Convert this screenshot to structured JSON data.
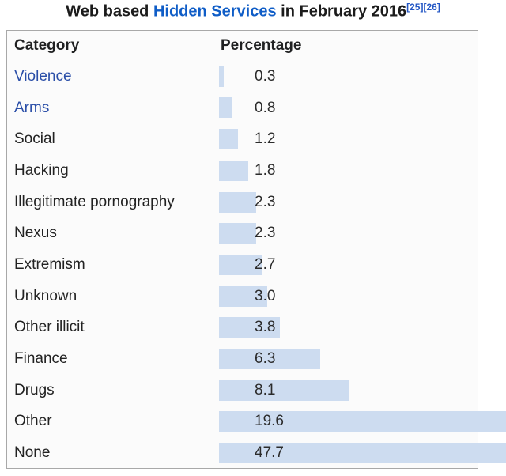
{
  "title": {
    "prefix": "Web based ",
    "link": "Hidden Services",
    "suffix": " in February 2016",
    "refs": [
      "[25]",
      "[26]"
    ]
  },
  "table": {
    "headers": {
      "category": "Category",
      "percentage": "Percentage"
    },
    "rows": [
      {
        "label": "Violence",
        "percent": 0.3,
        "display": "0.3",
        "is_link": true
      },
      {
        "label": "Arms",
        "percent": 0.8,
        "display": "0.8",
        "is_link": true
      },
      {
        "label": "Social",
        "percent": 1.2,
        "display": "1.2",
        "is_link": false
      },
      {
        "label": "Hacking",
        "percent": 1.8,
        "display": "1.8",
        "is_link": false
      },
      {
        "label": "Illegitimate pornography",
        "percent": 2.3,
        "display": "2.3",
        "is_link": false
      },
      {
        "label": "Nexus",
        "percent": 2.3,
        "display": "2.3",
        "is_link": false
      },
      {
        "label": "Extremism",
        "percent": 2.7,
        "display": "2.7",
        "is_link": false
      },
      {
        "label": "Unknown",
        "percent": 3.0,
        "display": "3.0",
        "is_link": false
      },
      {
        "label": "Other illicit",
        "percent": 3.8,
        "display": "3.8",
        "is_link": false
      },
      {
        "label": "Finance",
        "percent": 6.3,
        "display": "6.3",
        "is_link": false
      },
      {
        "label": "Drugs",
        "percent": 8.1,
        "display": "8.1",
        "is_link": false
      },
      {
        "label": "Other",
        "percent": 19.6,
        "display": "19.6",
        "is_link": false
      },
      {
        "label": "None",
        "percent": 47.7,
        "display": "47.7",
        "is_link": false
      }
    ]
  },
  "chart_data": {
    "type": "bar",
    "orientation": "horizontal",
    "title": "Web based Hidden Services in February 2016",
    "columns": [
      "Category",
      "Percentage"
    ],
    "categories": [
      "Violence",
      "Arms",
      "Social",
      "Hacking",
      "Illegitimate pornography",
      "Nexus",
      "Extremism",
      "Unknown",
      "Other illicit",
      "Finance",
      "Drugs",
      "Other",
      "None"
    ],
    "values": [
      0.3,
      0.8,
      1.2,
      1.8,
      2.3,
      2.3,
      2.7,
      3.0,
      3.8,
      6.3,
      8.1,
      19.6,
      47.7
    ],
    "unit": "percent",
    "value_labels_shown": true,
    "grid": false,
    "legend": false,
    "notes": "bars for Other and None overflow the table right edge and are clipped by the image boundary"
  },
  "colors": {
    "bar_fill": "#cddcf0",
    "table_background": "#fbfbfb",
    "table_border": "#a8a8a8",
    "body_link": "#2b4fa8",
    "title_link": "#0f5dc7",
    "text": "#222222"
  }
}
